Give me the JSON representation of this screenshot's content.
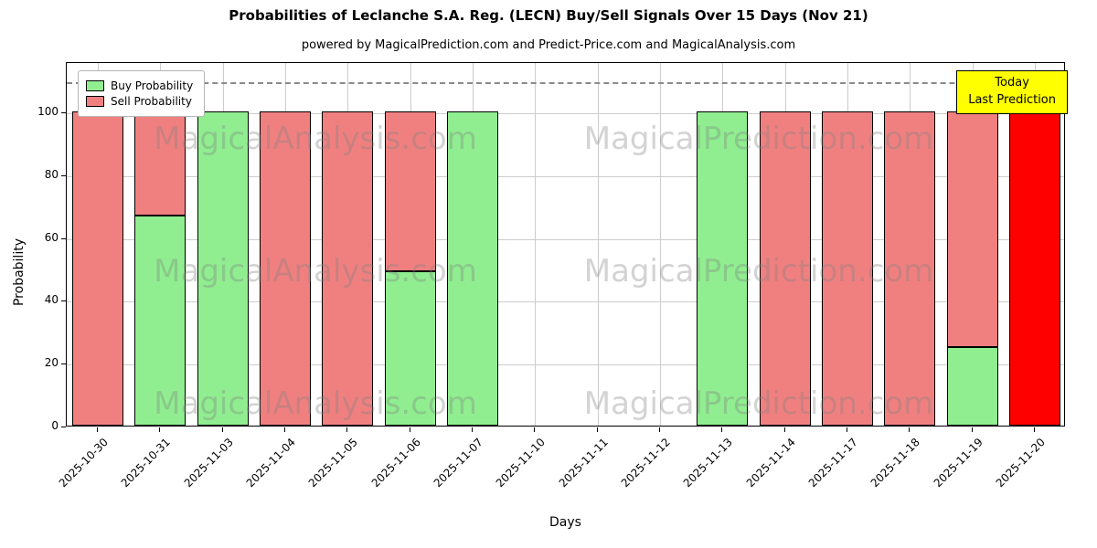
{
  "title": "Probabilities of Leclanche S.A. Reg. (LECN) Buy/Sell Signals Over 15 Days (Nov 21)",
  "subtitle": "powered by MagicalPrediction.com and Predict-Price.com and MagicalAnalysis.com",
  "legend": {
    "buy_label": "Buy Probability",
    "sell_label": "Sell Probability"
  },
  "annotation": {
    "line1": "Today",
    "line2": "Last Prediction",
    "bg": "#ffff00"
  },
  "axes": {
    "xlabel": "Days",
    "ylabel": "Probability"
  },
  "colors": {
    "buy": "#90ee90",
    "sell": "#f08080",
    "today": "#ff0000",
    "edge": "#000000",
    "grid": "#cccccc",
    "dashed": "#8a8a8a"
  },
  "watermarks": {
    "texts": [
      "MagicalAnalysis.com",
      "MagicalPrediction.com"
    ]
  },
  "chart_data": {
    "type": "bar",
    "stacked": true,
    "title": "Probabilities of Leclanche S.A. Reg. (LECN) Buy/Sell Signals Over 15 Days (Nov 21)",
    "xlabel": "Days",
    "ylabel": "Probability",
    "categories": [
      "2025-10-30",
      "2025-10-31",
      "2025-11-03",
      "2025-11-04",
      "2025-11-05",
      "2025-11-06",
      "2025-11-07",
      "2025-11-10",
      "2025-11-11",
      "2025-11-12",
      "2025-11-13",
      "2025-11-14",
      "2025-11-17",
      "2025-11-18",
      "2025-11-19",
      "2025-11-20"
    ],
    "series": [
      {
        "name": "Buy Probability",
        "color": "#90ee90",
        "values": [
          0,
          67,
          100,
          0,
          0,
          49,
          100,
          null,
          null,
          null,
          100,
          0,
          0,
          0,
          25,
          0
        ]
      },
      {
        "name": "Sell Probability",
        "color": "#f08080",
        "values": [
          100,
          33,
          0,
          100,
          100,
          51,
          0,
          null,
          null,
          null,
          0,
          100,
          100,
          100,
          75,
          100
        ]
      }
    ],
    "no_data_indices": [
      7,
      8,
      9
    ],
    "today_index": 15,
    "today_color": "#ff0000",
    "ylim": [
      0,
      116
    ],
    "yticks": [
      0,
      20,
      40,
      60,
      80,
      100
    ],
    "dashed_line_y": 110,
    "grid": true,
    "legend_position": "upper left",
    "bar_width_fraction": 0.82
  }
}
